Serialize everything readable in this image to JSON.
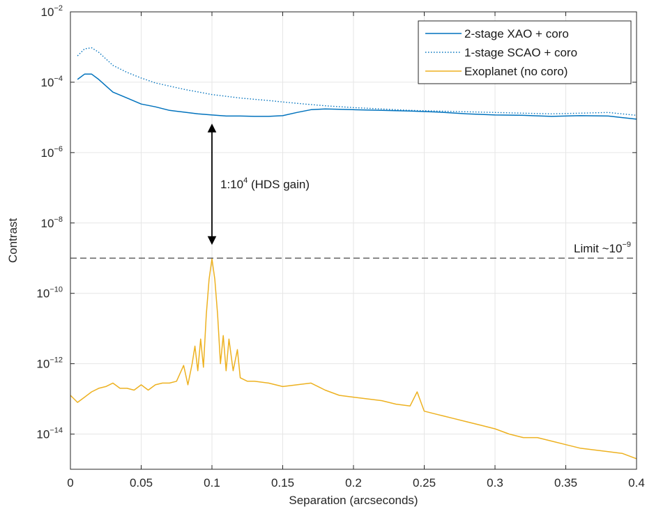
{
  "chart_data": {
    "type": "line",
    "xlabel": "Separation (arcseconds)",
    "ylabel": "Contrast",
    "xlim": [
      0,
      0.4
    ],
    "ylim_log10": [
      -15,
      -2
    ],
    "yscale": "log",
    "grid": true,
    "legend_position": "top-right",
    "x_ticks": [
      "0",
      "0.05",
      "0.1",
      "0.15",
      "0.2",
      "0.25",
      "0.3",
      "0.35",
      "0.4"
    ],
    "y_ticks": [
      {
        "base": "10",
        "exp": "−2"
      },
      {
        "base": "10",
        "exp": "−4"
      },
      {
        "base": "10",
        "exp": "−6"
      },
      {
        "base": "10",
        "exp": "−8"
      },
      {
        "base": "10",
        "exp": "−10"
      },
      {
        "base": "10",
        "exp": "−12"
      },
      {
        "base": "10",
        "exp": "−14"
      }
    ],
    "series": [
      {
        "name": "2-stage XAO + coro",
        "color": "#0072BD",
        "style": "solid",
        "x": [
          0.005,
          0.01,
          0.015,
          0.02,
          0.03,
          0.04,
          0.05,
          0.06,
          0.07,
          0.08,
          0.09,
          0.1,
          0.11,
          0.12,
          0.13,
          0.14,
          0.15,
          0.16,
          0.17,
          0.18,
          0.19,
          0.2,
          0.22,
          0.24,
          0.26,
          0.28,
          0.3,
          0.32,
          0.34,
          0.36,
          0.38,
          0.4
        ],
        "log10_y": [
          -3.92,
          -3.77,
          -3.77,
          -3.92,
          -4.28,
          -4.45,
          -4.62,
          -4.7,
          -4.8,
          -4.85,
          -4.9,
          -4.93,
          -4.96,
          -4.96,
          -4.97,
          -4.97,
          -4.95,
          -4.86,
          -4.78,
          -4.76,
          -4.77,
          -4.78,
          -4.8,
          -4.82,
          -4.85,
          -4.9,
          -4.93,
          -4.94,
          -4.97,
          -4.95,
          -4.96,
          -5.05
        ]
      },
      {
        "name": "1-stage SCAO + coro",
        "color": "#0072BD",
        "style": "dotted",
        "x": [
          0.005,
          0.01,
          0.015,
          0.02,
          0.03,
          0.04,
          0.05,
          0.06,
          0.08,
          0.1,
          0.12,
          0.14,
          0.16,
          0.18,
          0.2,
          0.22,
          0.24,
          0.26,
          0.28,
          0.3,
          0.32,
          0.34,
          0.36,
          0.38,
          0.4
        ],
        "log10_y": [
          -3.25,
          -3.05,
          -3.02,
          -3.15,
          -3.52,
          -3.72,
          -3.88,
          -4.02,
          -4.2,
          -4.35,
          -4.45,
          -4.52,
          -4.6,
          -4.67,
          -4.72,
          -4.76,
          -4.8,
          -4.82,
          -4.84,
          -4.86,
          -4.88,
          -4.9,
          -4.88,
          -4.86,
          -4.94
        ]
      },
      {
        "name": "Exoplanet (no coro)",
        "color": "#EDB120",
        "style": "solid",
        "x": [
          0.0,
          0.005,
          0.01,
          0.015,
          0.02,
          0.025,
          0.03,
          0.035,
          0.04,
          0.045,
          0.05,
          0.055,
          0.06,
          0.065,
          0.07,
          0.075,
          0.08,
          0.083,
          0.086,
          0.088,
          0.09,
          0.092,
          0.094,
          0.096,
          0.098,
          0.1,
          0.102,
          0.104,
          0.106,
          0.108,
          0.11,
          0.112,
          0.115,
          0.118,
          0.12,
          0.125,
          0.13,
          0.14,
          0.15,
          0.16,
          0.17,
          0.175,
          0.18,
          0.19,
          0.2,
          0.21,
          0.22,
          0.23,
          0.24,
          0.245,
          0.25,
          0.26,
          0.27,
          0.28,
          0.29,
          0.3,
          0.31,
          0.32,
          0.33,
          0.34,
          0.35,
          0.36,
          0.37,
          0.38,
          0.39,
          0.4
        ],
        "log10_y": [
          -12.9,
          -13.1,
          -12.95,
          -12.8,
          -12.7,
          -12.65,
          -12.55,
          -12.7,
          -12.7,
          -12.75,
          -12.6,
          -12.75,
          -12.6,
          -12.55,
          -12.55,
          -12.5,
          -12.05,
          -12.6,
          -12.0,
          -11.5,
          -12.2,
          -11.3,
          -12.1,
          -10.6,
          -9.6,
          -9.02,
          -9.6,
          -10.6,
          -12.0,
          -11.2,
          -12.2,
          -11.3,
          -12.2,
          -11.6,
          -12.4,
          -12.5,
          -12.5,
          -12.55,
          -12.65,
          -12.6,
          -12.55,
          -12.65,
          -12.75,
          -12.9,
          -12.95,
          -13.0,
          -13.05,
          -13.15,
          -13.2,
          -12.8,
          -13.35,
          -13.45,
          -13.55,
          -13.65,
          -13.75,
          -13.85,
          -14.0,
          -14.1,
          -14.1,
          -14.2,
          -14.3,
          -14.4,
          -14.45,
          -14.5,
          -14.55,
          -14.7
        ]
      }
    ],
    "limit_line": {
      "log10_y": -9,
      "label_text": "Limit ~10",
      "label_exp": "−9"
    },
    "arrow": {
      "x": 0.1,
      "from_log10_y": -5.3,
      "to_log10_y": -8.5,
      "label_text": "1:10",
      "label_exp": "4",
      "label_suffix": "  (HDS gain)"
    }
  }
}
